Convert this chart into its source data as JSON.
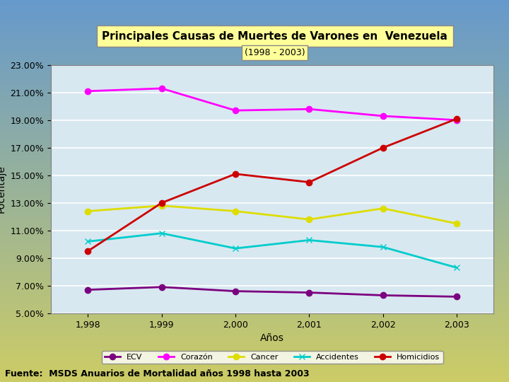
{
  "title": "Principales Causas de Muertes de Varones en  Venezuela",
  "subtitle": "(1998 - 2003)",
  "xlabel": "Años",
  "ylabel": "Pocentaje",
  "years": [
    1998,
    1999,
    2000,
    2001,
    2002,
    2003
  ],
  "year_labels": [
    "1,998",
    "1,999",
    "2,000",
    "2,001",
    "2,002",
    "2,003"
  ],
  "series": {
    "ECV": {
      "values": [
        6.7,
        6.9,
        6.6,
        6.5,
        6.3,
        6.2
      ],
      "color": "#7B0080",
      "marker": "o"
    },
    "Corazón": {
      "values": [
        21.1,
        21.3,
        19.7,
        19.8,
        19.3,
        19.0
      ],
      "color": "#FF00FF",
      "marker": "o"
    },
    "Cancer": {
      "values": [
        12.4,
        12.8,
        12.4,
        11.8,
        12.6,
        11.5
      ],
      "color": "#DDDD00",
      "marker": "o"
    },
    "Accidentes": {
      "values": [
        10.2,
        10.8,
        9.7,
        10.3,
        9.8,
        8.3
      ],
      "color": "#00CCCC",
      "marker": "x"
    },
    "Homicidios": {
      "values": [
        9.5,
        13.0,
        15.1,
        14.5,
        17.0,
        19.1
      ],
      "color": "#CC0000",
      "marker": "o"
    }
  },
  "ylim": [
    5.0,
    23.0
  ],
  "yticks": [
    5.0,
    7.0,
    9.0,
    11.0,
    13.0,
    15.0,
    17.0,
    19.0,
    21.0,
    23.0
  ],
  "ytick_labels": [
    "5.00%",
    "7.00%",
    "9.00%",
    "11.00%",
    "13.00%",
    "15.00%",
    "17.00%",
    "19.00%",
    "21.00%",
    "23.00%"
  ],
  "bg_color_top": "#6699CC",
  "bg_color_bottom": "#CCCC66",
  "plot_bg": "#D8E8F0",
  "title_box_color": "#FFFF99",
  "source_text": "Fuente:  MSDS Anuarios de Mortalidad años 1998 hasta 2003"
}
